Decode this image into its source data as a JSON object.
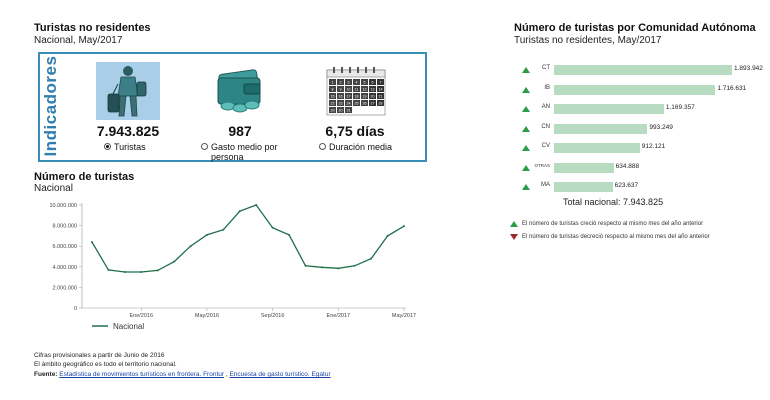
{
  "left_header": {
    "title": "Turistas no residentes",
    "subtitle": "Nacional, May/2017"
  },
  "indicators": {
    "panel_label": "Indicadores",
    "items": [
      {
        "value": "7.943.825",
        "label": "Turistas",
        "selected": true
      },
      {
        "value": "987",
        "label": "Gasto medio por persona",
        "selected": false
      },
      {
        "value": "6,75 días",
        "label": "Duración media",
        "selected": false
      }
    ]
  },
  "calendar_numbers": [
    "1",
    "2",
    "3",
    "4",
    "5",
    "6",
    "7",
    "8",
    "9",
    "10",
    "11",
    "12",
    "13",
    "14",
    "15",
    "16",
    "17",
    "18",
    "19",
    "20",
    "21",
    "22",
    "23",
    "24",
    "25",
    "26",
    "27",
    "28",
    "29",
    "30",
    "31"
  ],
  "line_chart_header": {
    "title": "Número de turistas",
    "subtitle": "Nacional"
  },
  "chart_data": [
    {
      "type": "line",
      "x_ticks": [
        "Ene/2016",
        "May/2016",
        "Sep/2016",
        "Ene/2017",
        "May/2017"
      ],
      "y_ticks": [
        "10.000.000",
        "8.000.000",
        "6.000.000",
        "4.000.000",
        "2.000.000",
        "0"
      ],
      "ylim": [
        0,
        10000000
      ],
      "series": [
        {
          "name": "Nacional",
          "color": "#1f6f4a",
          "x": [
            "Oct/2015",
            "Nov/2015",
            "Dic/2015",
            "Ene/2016",
            "Feb/2016",
            "Mar/2016",
            "Abr/2016",
            "May/2016",
            "Jun/2016",
            "Jul/2016",
            "Ago/2016",
            "Sep/2016",
            "Oct/2016",
            "Nov/2016",
            "Dic/2016",
            "Ene/2017",
            "Feb/2017",
            "Mar/2017",
            "Abr/2017",
            "May/2017"
          ],
          "values": [
            6400000,
            3700000,
            3500000,
            3500000,
            3650000,
            4500000,
            6000000,
            7100000,
            7600000,
            9400000,
            10000000,
            7800000,
            7100000,
            4100000,
            3950000,
            3850000,
            4100000,
            4800000,
            7000000,
            7943825
          ]
        }
      ]
    },
    {
      "type": "bar",
      "title": "Número de turistas por Comunidad Autónoma",
      "subtitle": "Turistas no residentes, May/2017",
      "categories": [
        "CT",
        "IB",
        "AN",
        "CN",
        "CV",
        "OTRAS",
        "MA"
      ],
      "values": [
        1893942,
        1716631,
        1169357,
        993249,
        912121,
        634888,
        623637
      ],
      "value_labels": [
        "1.893.942",
        "1.716.631",
        "1.169.357",
        "993.249",
        "912.121",
        "634.888",
        "623.637"
      ],
      "trend": [
        "up",
        "up",
        "up",
        "up",
        "up",
        "up",
        "up"
      ],
      "bar_color": "#b7dcc2"
    }
  ],
  "bars_total": "Total nacional: 7.943.825",
  "bars_legend": {
    "up_text": "El número de turistas creció respecto al mismo mes del año anterior",
    "down_text": "El número de turistas decreció respecto al mismo mes del año anterior",
    "up_color": "#2e9b47",
    "down_color": "#9b2a2a"
  },
  "footnotes": {
    "line1": "Cifras provisionales a partir de Junio de 2016",
    "line2": "El ámbito geográfico es todo el territorio nacional.",
    "source_label": "Fuente:",
    "source_link1": "Estadística de movimientos turísticos en frontera. Frontur",
    "source_sep": " , ",
    "source_link2": "Encuesta de gasto turístico. Egatur"
  }
}
